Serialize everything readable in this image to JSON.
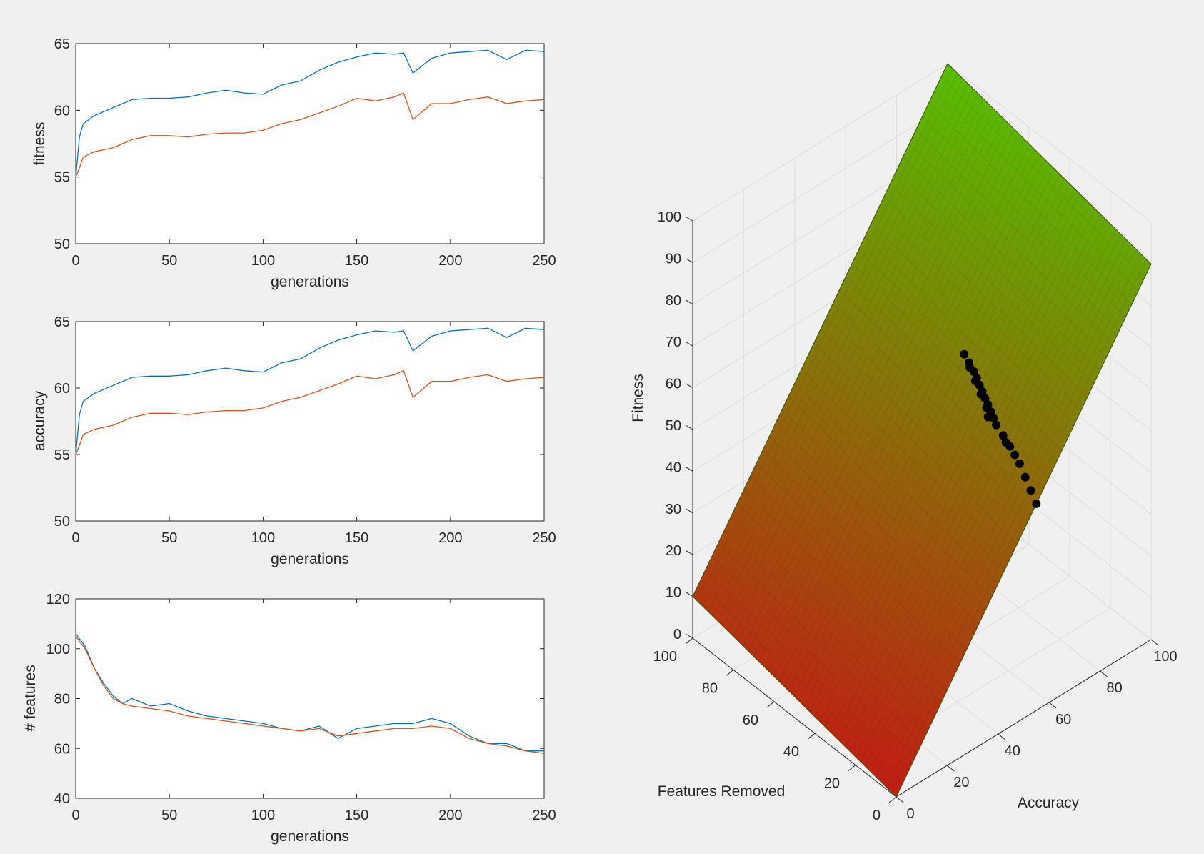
{
  "figure": {
    "background": "#f0f0f0",
    "series_colors": [
      "#0072bd",
      "#d95319"
    ]
  },
  "chart_data": [
    {
      "type": "line",
      "xlabel": "generations",
      "ylabel": "fitness",
      "xlim": [
        0,
        250
      ],
      "ylim": [
        50,
        65
      ],
      "xticks": [
        "0",
        "50",
        "100",
        "150",
        "200",
        "250"
      ],
      "yticks": [
        "50",
        "55",
        "60",
        "65"
      ],
      "x": [
        0,
        2,
        4,
        10,
        20,
        30,
        40,
        50,
        60,
        70,
        80,
        90,
        100,
        110,
        120,
        130,
        140,
        150,
        160,
        170,
        175,
        180,
        190,
        200,
        210,
        220,
        230,
        240,
        250
      ],
      "series": [
        {
          "values": [
            55.0,
            58.0,
            59.0,
            59.6,
            60.2,
            60.8,
            60.9,
            60.9,
            61.0,
            61.3,
            61.5,
            61.3,
            61.2,
            61.9,
            62.2,
            63.0,
            63.6,
            64.0,
            64.3,
            64.2,
            64.3,
            62.8,
            63.9,
            64.3,
            64.4,
            64.5,
            63.8,
            64.5,
            64.4
          ]
        },
        {
          "values": [
            55.0,
            55.7,
            56.5,
            56.9,
            57.2,
            57.8,
            58.1,
            58.1,
            58.0,
            58.2,
            58.3,
            58.3,
            58.5,
            59.0,
            59.3,
            59.8,
            60.3,
            60.9,
            60.7,
            61.0,
            61.3,
            59.3,
            60.5,
            60.5,
            60.8,
            61.0,
            60.5,
            60.7,
            60.8
          ]
        }
      ]
    },
    {
      "type": "line",
      "xlabel": "generations",
      "ylabel": "accuracy",
      "xlim": [
        0,
        250
      ],
      "ylim": [
        50,
        65
      ],
      "xticks": [
        "0",
        "50",
        "100",
        "150",
        "200",
        "250"
      ],
      "yticks": [
        "50",
        "55",
        "60",
        "65"
      ],
      "x": [
        0,
        2,
        4,
        10,
        20,
        30,
        40,
        50,
        60,
        70,
        80,
        90,
        100,
        110,
        120,
        130,
        140,
        150,
        160,
        170,
        175,
        180,
        190,
        200,
        210,
        220,
        230,
        240,
        250
      ],
      "series": [
        {
          "values": [
            55.0,
            58.0,
            59.0,
            59.6,
            60.2,
            60.8,
            60.9,
            60.9,
            61.0,
            61.3,
            61.5,
            61.3,
            61.2,
            61.9,
            62.2,
            63.0,
            63.6,
            64.0,
            64.3,
            64.2,
            64.3,
            62.8,
            63.9,
            64.3,
            64.4,
            64.5,
            63.8,
            64.5,
            64.4
          ]
        },
        {
          "values": [
            55.0,
            55.7,
            56.5,
            56.9,
            57.2,
            57.8,
            58.1,
            58.1,
            58.0,
            58.2,
            58.3,
            58.3,
            58.5,
            59.0,
            59.3,
            59.8,
            60.3,
            60.9,
            60.7,
            61.0,
            61.3,
            59.3,
            60.5,
            60.5,
            60.8,
            61.0,
            60.5,
            60.7,
            60.8
          ]
        }
      ]
    },
    {
      "type": "line",
      "xlabel": "generations",
      "ylabel": "# features",
      "xlim": [
        0,
        250
      ],
      "ylim": [
        40,
        120
      ],
      "xticks": [
        "0",
        "50",
        "100",
        "150",
        "200",
        "250"
      ],
      "yticks": [
        "40",
        "60",
        "80",
        "100",
        "120"
      ],
      "x": [
        0,
        5,
        10,
        15,
        20,
        25,
        30,
        40,
        50,
        60,
        70,
        80,
        90,
        100,
        110,
        120,
        130,
        140,
        150,
        160,
        170,
        180,
        190,
        200,
        210,
        220,
        230,
        240,
        250
      ],
      "series": [
        {
          "values": [
            106,
            101,
            92,
            86,
            81,
            78,
            80,
            77,
            78,
            75,
            73,
            72,
            71,
            70,
            68,
            67,
            69,
            64,
            68,
            69,
            70,
            70,
            72,
            70,
            65,
            62,
            62,
            59,
            59
          ]
        },
        {
          "values": [
            105,
            100,
            92,
            85,
            80,
            78,
            77,
            76,
            75,
            73,
            72,
            71,
            70,
            69,
            68,
            67,
            68,
            65,
            66,
            67,
            68,
            68,
            69,
            68,
            64,
            62,
            61,
            59,
            58
          ]
        }
      ]
    },
    {
      "type": "surface",
      "zlabel": "Fitness",
      "xlabel": "Accuracy",
      "ylabel": "Features Removed",
      "xlim": [
        0,
        100
      ],
      "ylim": [
        0,
        100
      ],
      "zlim": [
        0,
        100
      ],
      "xticks": [
        "0",
        "20",
        "40",
        "60",
        "80",
        "100"
      ],
      "yticks": [
        "0",
        "20",
        "40",
        "60",
        "80",
        "100"
      ],
      "zticks": [
        "0",
        "10",
        "20",
        "30",
        "40",
        "50",
        "60",
        "70",
        "80",
        "90",
        "100"
      ],
      "colormap": [
        "#c81414",
        "#50c800"
      ],
      "surface_z_corners": {
        "acc0_fr0": 0,
        "acc100_fr0": 90,
        "acc0_fr100": 10,
        "acc100_fr100": 100
      },
      "points": {
        "accuracy": [
          55,
          56,
          57,
          58,
          58.5,
          59,
          59.5,
          60,
          60.5,
          61,
          61.5,
          62,
          62.5,
          63,
          63.5,
          64,
          64.5,
          65,
          60,
          61,
          62,
          63,
          64,
          59,
          61,
          63
        ],
        "features_removed": [
          0,
          4,
          8,
          12,
          15,
          18,
          22,
          26,
          28,
          30,
          32,
          34,
          36,
          38,
          40,
          42,
          45,
          48,
          30,
          32,
          36,
          40,
          44,
          20,
          30,
          38
        ],
        "fitness": [
          49.5,
          50.8,
          52.1,
          53.4,
          54.2,
          54.9,
          55.8,
          56.6,
          57.3,
          57.9,
          58.6,
          59.2,
          59.9,
          60.5,
          61.2,
          61.8,
          62.6,
          63.3,
          57.0,
          58.1,
          59.4,
          60.7,
          62.0,
          55.1,
          57.9,
          60.5
        ],
        "color": "#000000"
      }
    }
  ]
}
